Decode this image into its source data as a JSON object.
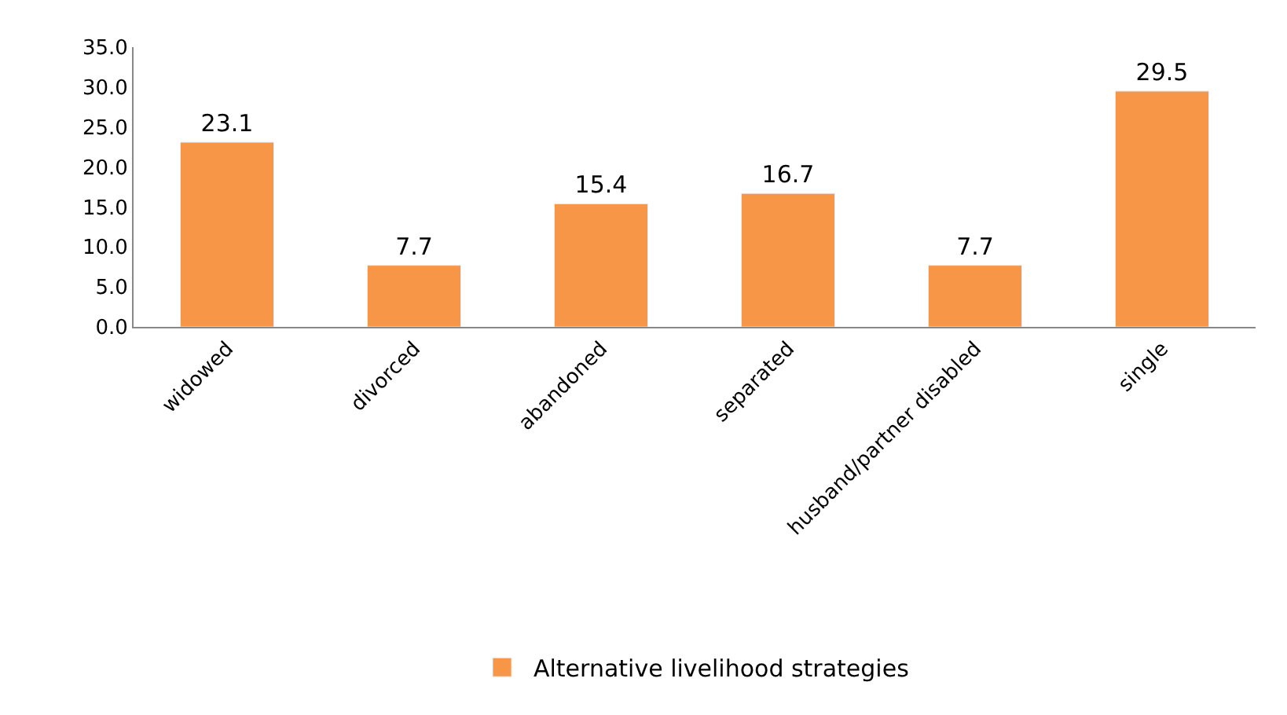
{
  "chart_data": {
    "type": "bar",
    "categories": [
      "widowed",
      "divorced",
      "abandoned",
      "separated",
      "husband/partner disabled",
      "single"
    ],
    "series": [
      {
        "name": "Alternative livelihood strategies",
        "color": "#f79646",
        "values": [
          23.1,
          7.7,
          15.4,
          16.7,
          7.7,
          29.5
        ]
      }
    ],
    "data_labels": true,
    "ylim": [
      0,
      35
    ],
    "yticks": [
      {
        "value": 0,
        "label": "0.0"
      },
      {
        "value": 5,
        "label": "5.0"
      },
      {
        "value": 10,
        "label": "10.0"
      },
      {
        "value": 15,
        "label": "15.0"
      },
      {
        "value": 20,
        "label": "20.0"
      },
      {
        "value": 25,
        "label": "25.0"
      },
      {
        "value": 30,
        "label": "30.0"
      },
      {
        "value": 35,
        "label": "35.0"
      }
    ],
    "legend": "bottom"
  }
}
